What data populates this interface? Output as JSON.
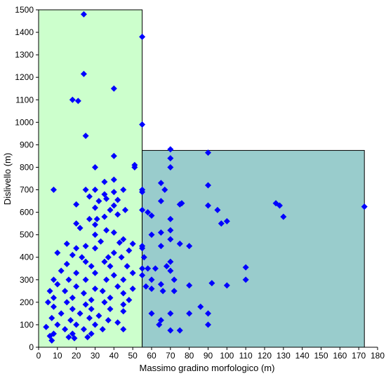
{
  "chart_data": {
    "type": "scatter",
    "xlabel": "Massimo gradino morfologico (m)",
    "ylabel": "Dislivello (m)",
    "xlim": [
      0,
      180
    ],
    "ylim": [
      0,
      1500
    ],
    "xticks": [
      "0",
      "10",
      "20",
      "30",
      "40",
      "50",
      "60",
      "70",
      "80",
      "90",
      "100",
      "110",
      "120",
      "130",
      "140",
      "150",
      "160",
      "170",
      "180"
    ],
    "yticks": [
      "0",
      "100",
      "200",
      "300",
      "400",
      "500",
      "600",
      "700",
      "800",
      "900",
      "1000",
      "1100",
      "1200",
      "1300",
      "1400",
      "1500"
    ],
    "grid": false,
    "legend": "none",
    "marker": "diamond",
    "marker_color": "#0000ff",
    "regions": [
      {
        "x": [
          0,
          55
        ],
        "y": [
          0,
          1500
        ],
        "color": "#ccffcc"
      },
      {
        "x": [
          55,
          173
        ],
        "y": [
          0,
          875
        ],
        "color": "#99cccc"
      }
    ],
    "points": [
      [
        24,
        1480
      ],
      [
        55,
        1380
      ],
      [
        24,
        1215
      ],
      [
        40,
        1150
      ],
      [
        18,
        1100
      ],
      [
        21,
        1095
      ],
      [
        55,
        990
      ],
      [
        25,
        940
      ],
      [
        70,
        880
      ],
      [
        90,
        865
      ],
      [
        40,
        850
      ],
      [
        70,
        840
      ],
      [
        30,
        800
      ],
      [
        70,
        800
      ],
      [
        51,
        810
      ],
      [
        51,
        800
      ],
      [
        40,
        745
      ],
      [
        35,
        735
      ],
      [
        90,
        720
      ],
      [
        8,
        700
      ],
      [
        25,
        700
      ],
      [
        30,
        700
      ],
      [
        45,
        700
      ],
      [
        55,
        700
      ],
      [
        55,
        690
      ],
      [
        65,
        730
      ],
      [
        67,
        700
      ],
      [
        40,
        690
      ],
      [
        35,
        680
      ],
      [
        27,
        670
      ],
      [
        36,
        660
      ],
      [
        42,
        655
      ],
      [
        32,
        650
      ],
      [
        65,
        650
      ],
      [
        76,
        640
      ],
      [
        75,
        635
      ],
      [
        126,
        640
      ],
      [
        128,
        630
      ],
      [
        173,
        625
      ],
      [
        20,
        635
      ],
      [
        40,
        630
      ],
      [
        90,
        630
      ],
      [
        30,
        620
      ],
      [
        38,
        610
      ],
      [
        46,
        610
      ],
      [
        55,
        610
      ],
      [
        58,
        600
      ],
      [
        95,
        610
      ],
      [
        60,
        585
      ],
      [
        42,
        590
      ],
      [
        35,
        580
      ],
      [
        27,
        570
      ],
      [
        31,
        570
      ],
      [
        130,
        580
      ],
      [
        70,
        570
      ],
      [
        97,
        550
      ],
      [
        100,
        560
      ],
      [
        20,
        550
      ],
      [
        30,
        545
      ],
      [
        22,
        530
      ],
      [
        36,
        520
      ],
      [
        40,
        510
      ],
      [
        70,
        520
      ],
      [
        65,
        510
      ],
      [
        60,
        500
      ],
      [
        30,
        500
      ],
      [
        45,
        480
      ],
      [
        33,
        470
      ],
      [
        43,
        465
      ],
      [
        70,
        480
      ],
      [
        15,
        460
      ],
      [
        25,
        450
      ],
      [
        55,
        450
      ],
      [
        75,
        460
      ],
      [
        80,
        450
      ],
      [
        65,
        450
      ],
      [
        50,
        460
      ],
      [
        20,
        440
      ],
      [
        30,
        440
      ],
      [
        40,
        420
      ],
      [
        48,
        430
      ],
      [
        55,
        440
      ],
      [
        56,
        400
      ],
      [
        10,
        420
      ],
      [
        18,
        410
      ],
      [
        23,
        400
      ],
      [
        37,
        400
      ],
      [
        44,
        400
      ],
      [
        35,
        380
      ],
      [
        25,
        380
      ],
      [
        15,
        370
      ],
      [
        28,
        360
      ],
      [
        38,
        360
      ],
      [
        47,
        360
      ],
      [
        62,
        350
      ],
      [
        68,
        360
      ],
      [
        70,
        380
      ],
      [
        55,
        350
      ],
      [
        58,
        350
      ],
      [
        110,
        355
      ],
      [
        12,
        340
      ],
      [
        20,
        330
      ],
      [
        30,
        330
      ],
      [
        40,
        320
      ],
      [
        50,
        330
      ],
      [
        70,
        340
      ],
      [
        55,
        320
      ],
      [
        8,
        300
      ],
      [
        16,
        300
      ],
      [
        25,
        300
      ],
      [
        36,
        300
      ],
      [
        45,
        300
      ],
      [
        60,
        300
      ],
      [
        65,
        280
      ],
      [
        72,
        300
      ],
      [
        92,
        285
      ],
      [
        110,
        300
      ],
      [
        10,
        280
      ],
      [
        20,
        270
      ],
      [
        30,
        260
      ],
      [
        42,
        270
      ],
      [
        50,
        260
      ],
      [
        57,
        270
      ],
      [
        80,
        275
      ],
      [
        100,
        275
      ],
      [
        6,
        250
      ],
      [
        14,
        250
      ],
      [
        24,
        240
      ],
      [
        34,
        250
      ],
      [
        45,
        240
      ],
      [
        60,
        260
      ],
      [
        66,
        250
      ],
      [
        72,
        250
      ],
      [
        8,
        220
      ],
      [
        18,
        220
      ],
      [
        28,
        210
      ],
      [
        38,
        220
      ],
      [
        48,
        210
      ],
      [
        5,
        200
      ],
      [
        15,
        200
      ],
      [
        25,
        190
      ],
      [
        35,
        200
      ],
      [
        45,
        190
      ],
      [
        8,
        180
      ],
      [
        18,
        170
      ],
      [
        28,
        170
      ],
      [
        38,
        170
      ],
      [
        86,
        180
      ],
      [
        12,
        150
      ],
      [
        22,
        150
      ],
      [
        32,
        140
      ],
      [
        45,
        160
      ],
      [
        60,
        150
      ],
      [
        70,
        150
      ],
      [
        80,
        150
      ],
      [
        90,
        150
      ],
      [
        7,
        130
      ],
      [
        17,
        120
      ],
      [
        27,
        130
      ],
      [
        37,
        120
      ],
      [
        65,
        120
      ],
      [
        10,
        100
      ],
      [
        20,
        100
      ],
      [
        30,
        100
      ],
      [
        42,
        110
      ],
      [
        64,
        100
      ],
      [
        90,
        100
      ],
      [
        4,
        90
      ],
      [
        14,
        80
      ],
      [
        24,
        80
      ],
      [
        34,
        80
      ],
      [
        45,
        80
      ],
      [
        8,
        60
      ],
      [
        18,
        60
      ],
      [
        28,
        60
      ],
      [
        70,
        75
      ],
      [
        75,
        75
      ],
      [
        6,
        50
      ],
      [
        16,
        45
      ],
      [
        26,
        45
      ],
      [
        7,
        30
      ],
      [
        19,
        40
      ]
    ]
  }
}
